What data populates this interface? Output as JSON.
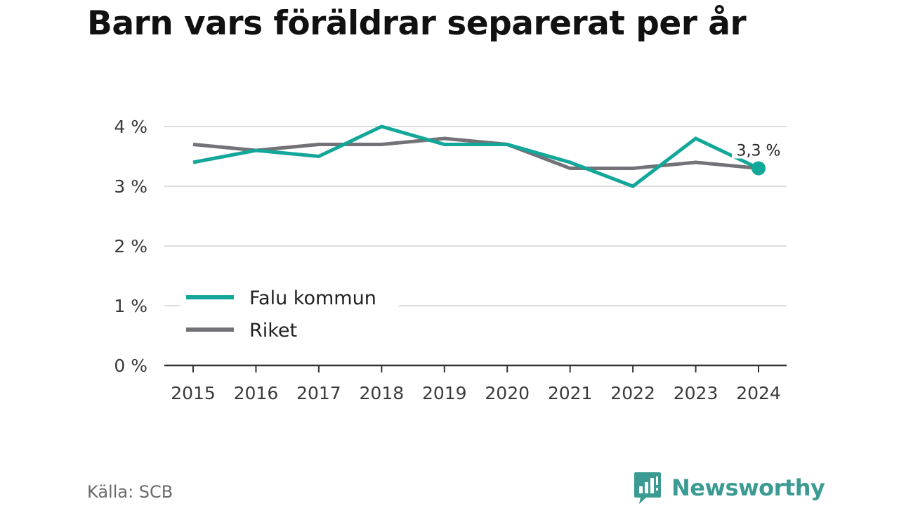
{
  "title": "Barn vars föräldrar separerat per år",
  "source": "Källa: SCB",
  "brand": {
    "name": "Newsworthy",
    "icon": "bar-chart-speech-bubble-icon",
    "color": "#3b9b93"
  },
  "chart_data": {
    "type": "line",
    "title": "Barn vars föräldrar separerat per år",
    "x": [
      "2015",
      "2016",
      "2017",
      "2018",
      "2019",
      "2020",
      "2021",
      "2022",
      "2023",
      "2024"
    ],
    "ylim": [
      0,
      4
    ],
    "yticks": [
      0,
      1,
      2,
      3,
      4
    ],
    "ytick_labels": [
      "0 %",
      "1 %",
      "2 %",
      "3 %",
      "4 %"
    ],
    "grid": true,
    "legend_position": "lower-left",
    "series": [
      {
        "name": "Falu kommun",
        "color": "#13a79a",
        "values": [
          3.4,
          3.6,
          3.5,
          4.0,
          3.7,
          3.7,
          3.4,
          3.0,
          3.8,
          3.3
        ]
      },
      {
        "name": "Riket",
        "color": "#737277",
        "values": [
          3.7,
          3.6,
          3.7,
          3.7,
          3.8,
          3.7,
          3.3,
          3.3,
          3.4,
          3.3
        ]
      }
    ],
    "annotation": {
      "series": "Falu kommun",
      "x": "2024",
      "label": "3,3 %"
    }
  }
}
